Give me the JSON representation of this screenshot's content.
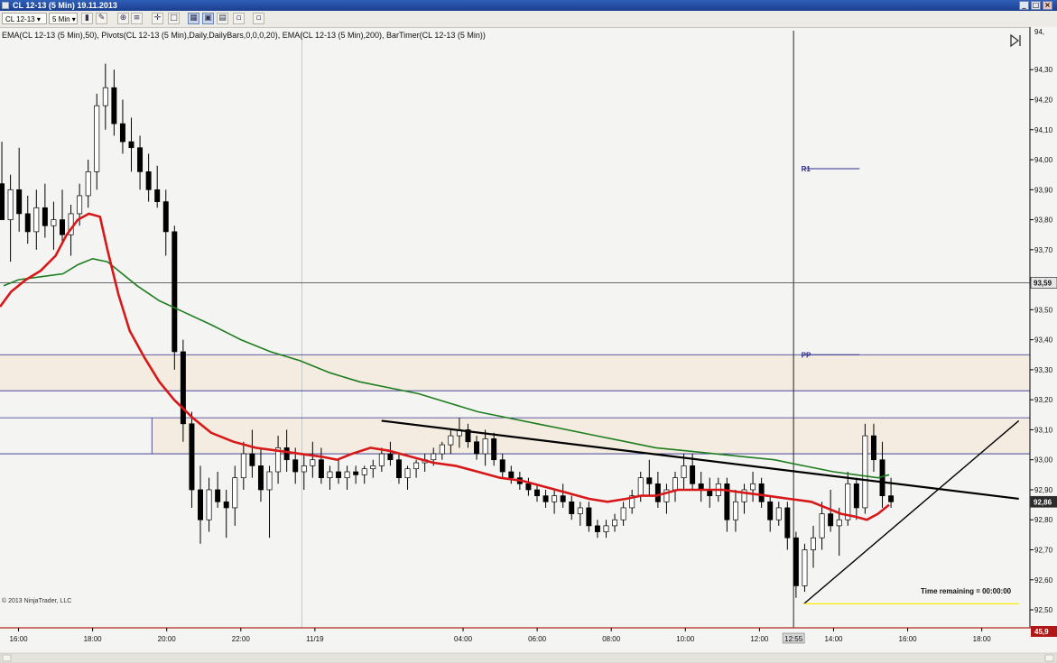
{
  "window": {
    "title": "CL 12-13 (5 Min)  19.11.2013",
    "buttons": [
      "_",
      "□",
      "×"
    ]
  },
  "toolbar": {
    "instrument": "CL 12-13",
    "interval": "5 Min",
    "icons": [
      "bar-type-icon",
      "pencil-icon",
      "zoom-icon",
      "crosshair-icon",
      "properties-icon",
      "data-box-icon",
      "grid-icon",
      "restore-icon",
      "window-icon"
    ]
  },
  "colors": {
    "ema50": "#d81818",
    "ema200": "#1e7d1e",
    "pivot": "#2c2c8a",
    "zone_fill": "#f4ece0",
    "background": "#f4f4f2",
    "candle_up": "#ffffff",
    "candle_down": "#000000",
    "price_marker": "#2b2b2b",
    "low_line": "#ffea00",
    "timer_box": "#b21717"
  },
  "chart_data": {
    "type": "candlestick",
    "indicator_label": "EMA(CL 12-13 (5 Min),50), Pivots(CL 12-13 (5 Min),Daily,DailyBars,0,0,0,20), EMA(CL 12-13 (5 Min),200), BarTimer(CL 12-13 (5 Min))",
    "ylim": [
      92.44,
      94.43
    ],
    "y_ticks": [
      94.3,
      94.2,
      94.1,
      94.0,
      93.9,
      93.8,
      93.7,
      93.6,
      93.5,
      93.4,
      93.3,
      93.2,
      93.1,
      93.0,
      92.9,
      92.8,
      92.7,
      92.6,
      92.5
    ],
    "y_tick_labels": [
      "94,30",
      "94,20",
      "94,10",
      "94,00",
      "93,90",
      "93,80",
      "93,70",
      "93,60",
      "93,50",
      "93,40",
      "93,30",
      "93,20",
      "93,10",
      "93,00",
      "92,90",
      "92,80",
      "92,70",
      "92,60",
      "92,50"
    ],
    "y_top_partial": "94,",
    "x_range_hours": [
      15.5,
      43.3
    ],
    "x_ticks": [
      {
        "t": 16,
        "label": "16:00"
      },
      {
        "t": 18,
        "label": "18:00"
      },
      {
        "t": 20,
        "label": "20:00"
      },
      {
        "t": 22,
        "label": "22:00"
      },
      {
        "t": 24,
        "label": "11/19"
      },
      {
        "t": 28,
        "label": "04:00"
      },
      {
        "t": 30,
        "label": "06:00"
      },
      {
        "t": 32,
        "label": "08:00"
      },
      {
        "t": 34,
        "label": "10:00"
      },
      {
        "t": 36,
        "label": "12:00"
      },
      {
        "t": 38,
        "label": "14:00"
      },
      {
        "t": 40,
        "label": "16:00"
      },
      {
        "t": 42,
        "label": "18:00"
      }
    ],
    "x_axis_marker": {
      "t": 36.92,
      "label": "12:55"
    },
    "session_divider_t": 23.65,
    "last_price": {
      "value": 92.86,
      "label": "92,86"
    },
    "other_price_marker": {
      "value": 93.59,
      "label": "93,59"
    },
    "horizontal_lines": [
      93.59,
      93.35,
      93.23,
      93.14,
      93.02
    ],
    "zones": [
      {
        "from": 93.23,
        "to": 93.35
      },
      {
        "from": 93.02,
        "to": 93.14
      }
    ],
    "zone2_start_t": 19.6,
    "pivots": [
      {
        "name": "R1",
        "value": 93.97,
        "t_from": 37.2,
        "t_to": 38.7
      },
      {
        "name": "PP",
        "value": 93.35,
        "t_from": 37.2,
        "t_to": 38.7
      }
    ],
    "low_line": {
      "value": 92.52,
      "t_from": 37.2,
      "t_to": 43.0
    },
    "trendlines": [
      {
        "t1": 25.8,
        "v1": 93.13,
        "t2": 43.0,
        "v2": 92.87
      },
      {
        "t1": 37.2,
        "v1": 92.52,
        "t2": 43.0,
        "v2": 93.13
      }
    ],
    "ema50_points": [
      [
        15.5,
        93.51
      ],
      [
        15.8,
        93.56
      ],
      [
        16.2,
        93.6
      ],
      [
        16.6,
        93.63
      ],
      [
        17.0,
        93.68
      ],
      [
        17.3,
        93.75
      ],
      [
        17.6,
        93.8
      ],
      [
        17.9,
        93.82
      ],
      [
        18.2,
        93.81
      ],
      [
        18.4,
        93.7
      ],
      [
        18.7,
        93.55
      ],
      [
        19.0,
        93.43
      ],
      [
        19.4,
        93.34
      ],
      [
        19.8,
        93.26
      ],
      [
        20.2,
        93.2
      ],
      [
        20.7,
        93.14
      ],
      [
        21.2,
        93.09
      ],
      [
        21.8,
        93.06
      ],
      [
        22.4,
        93.04
      ],
      [
        23.0,
        93.03
      ],
      [
        23.6,
        93.02
      ],
      [
        24.2,
        93.01
      ],
      [
        24.6,
        93.0
      ],
      [
        25.0,
        93.02
      ],
      [
        25.5,
        93.04
      ],
      [
        26.0,
        93.03
      ],
      [
        26.6,
        93.01
      ],
      [
        27.2,
        92.99
      ],
      [
        27.8,
        92.98
      ],
      [
        28.4,
        92.96
      ],
      [
        29.0,
        92.94
      ],
      [
        29.6,
        92.93
      ],
      [
        30.2,
        92.91
      ],
      [
        30.8,
        92.89
      ],
      [
        31.4,
        92.87
      ],
      [
        31.9,
        92.86
      ],
      [
        32.4,
        92.87
      ],
      [
        32.8,
        92.88
      ],
      [
        33.2,
        92.88
      ],
      [
        33.8,
        92.9
      ],
      [
        34.4,
        92.9
      ],
      [
        35.0,
        92.9
      ],
      [
        35.6,
        92.89
      ],
      [
        36.2,
        92.88
      ],
      [
        36.8,
        92.87
      ],
      [
        37.4,
        92.86
      ],
      [
        37.8,
        92.84
      ],
      [
        38.2,
        92.82
      ],
      [
        38.6,
        92.81
      ],
      [
        38.9,
        92.8
      ],
      [
        39.2,
        92.82
      ],
      [
        39.5,
        92.85
      ]
    ],
    "ema200_points": [
      [
        15.6,
        93.58
      ],
      [
        16.0,
        93.6
      ],
      [
        16.6,
        93.61
      ],
      [
        17.2,
        93.62
      ],
      [
        17.6,
        93.65
      ],
      [
        18.0,
        93.67
      ],
      [
        18.4,
        93.66
      ],
      [
        18.7,
        93.63
      ],
      [
        19.2,
        93.58
      ],
      [
        19.8,
        93.53
      ],
      [
        20.5,
        93.49
      ],
      [
        21.2,
        93.45
      ],
      [
        22.0,
        93.4
      ],
      [
        22.8,
        93.36
      ],
      [
        23.6,
        93.33
      ],
      [
        24.4,
        93.29
      ],
      [
        25.2,
        93.26
      ],
      [
        26.0,
        93.24
      ],
      [
        26.8,
        93.22
      ],
      [
        27.6,
        93.19
      ],
      [
        28.4,
        93.16
      ],
      [
        29.2,
        93.14
      ],
      [
        30.0,
        93.12
      ],
      [
        30.8,
        93.1
      ],
      [
        31.6,
        93.08
      ],
      [
        32.4,
        93.06
      ],
      [
        33.2,
        93.04
      ],
      [
        34.0,
        93.03
      ],
      [
        34.8,
        93.02
      ],
      [
        35.6,
        93.01
      ],
      [
        36.4,
        93.0
      ],
      [
        37.2,
        92.98
      ],
      [
        38.0,
        92.96
      ],
      [
        38.6,
        92.95
      ],
      [
        39.2,
        92.94
      ],
      [
        39.5,
        92.95
      ]
    ],
    "candles_ohlc": [
      [
        93.92,
        94.06,
        93.82,
        93.8
      ],
      [
        93.8,
        93.95,
        93.66,
        93.9
      ],
      [
        93.9,
        94.04,
        93.76,
        93.82
      ],
      [
        93.82,
        93.88,
        93.72,
        93.76
      ],
      [
        93.76,
        93.9,
        93.7,
        93.84
      ],
      [
        93.84,
        93.92,
        93.74,
        93.78
      ],
      [
        93.78,
        93.86,
        93.7,
        93.8
      ],
      [
        93.8,
        93.9,
        93.72,
        93.75
      ],
      [
        93.75,
        93.85,
        93.68,
        93.82
      ],
      [
        93.82,
        93.92,
        93.78,
        93.88
      ],
      [
        93.88,
        94.0,
        93.84,
        93.96
      ],
      [
        93.96,
        94.22,
        93.9,
        94.18
      ],
      [
        94.18,
        94.32,
        94.1,
        94.24
      ],
      [
        94.24,
        94.3,
        94.08,
        94.12
      ],
      [
        94.12,
        94.2,
        94.02,
        94.06
      ],
      [
        94.06,
        94.14,
        93.96,
        94.04
      ],
      [
        94.04,
        94.08,
        93.9,
        93.96
      ],
      [
        93.96,
        94.02,
        93.86,
        93.9
      ],
      [
        93.9,
        93.98,
        93.84,
        93.86
      ],
      [
        93.86,
        93.9,
        93.68,
        93.76
      ],
      [
        93.76,
        93.78,
        93.3,
        93.36
      ],
      [
        93.36,
        93.4,
        93.06,
        93.12
      ],
      [
        93.12,
        93.16,
        92.84,
        92.9
      ],
      [
        92.9,
        92.98,
        92.72,
        92.8
      ],
      [
        92.8,
        92.94,
        92.76,
        92.9
      ],
      [
        92.9,
        92.96,
        92.84,
        92.86
      ],
      [
        92.86,
        92.9,
        92.74,
        92.84
      ],
      [
        92.84,
        92.98,
        92.78,
        92.94
      ],
      [
        92.94,
        93.06,
        92.9,
        93.02
      ],
      [
        93.02,
        93.1,
        92.94,
        92.98
      ],
      [
        92.98,
        93.04,
        92.86,
        92.9
      ],
      [
        92.9,
        92.98,
        92.74,
        92.96
      ],
      [
        92.96,
        93.08,
        92.92,
        93.04
      ],
      [
        93.04,
        93.1,
        92.96,
        93.0
      ],
      [
        93.0,
        93.04,
        92.92,
        92.96
      ],
      [
        92.96,
        93.02,
        92.9,
        92.98
      ],
      [
        92.98,
        93.06,
        92.94,
        93.0
      ],
      [
        93.0,
        93.04,
        92.92,
        92.94
      ],
      [
        92.94,
        92.98,
        92.9,
        92.96
      ],
      [
        92.96,
        93.0,
        92.92,
        92.94
      ],
      [
        92.94,
        92.98,
        92.9,
        92.96
      ],
      [
        92.96,
        92.98,
        92.92,
        92.95
      ],
      [
        92.95,
        92.98,
        92.92,
        92.97
      ],
      [
        92.97,
        93.0,
        92.94,
        92.98
      ],
      [
        92.98,
        93.04,
        92.96,
        93.02
      ],
      [
        93.02,
        93.06,
        92.98,
        93.0
      ],
      [
        93.0,
        93.02,
        92.92,
        92.94
      ],
      [
        92.94,
        92.98,
        92.9,
        92.97
      ],
      [
        92.97,
        93.0,
        92.94,
        92.99
      ],
      [
        92.99,
        93.02,
        92.96,
        93.0
      ],
      [
        93.0,
        93.04,
        92.98,
        93.02
      ],
      [
        93.02,
        93.06,
        93.0,
        93.05
      ],
      [
        93.05,
        93.1,
        93.02,
        93.08
      ],
      [
        93.08,
        93.14,
        93.04,
        93.1
      ],
      [
        93.1,
        93.12,
        93.04,
        93.06
      ],
      [
        93.06,
        93.08,
        93.0,
        93.02
      ],
      [
        93.02,
        93.1,
        92.98,
        93.07
      ],
      [
        93.07,
        93.09,
        92.98,
        93.0
      ],
      [
        93.0,
        93.02,
        92.94,
        92.96
      ],
      [
        92.96,
        92.98,
        92.92,
        92.94
      ],
      [
        92.94,
        92.96,
        92.9,
        92.92
      ],
      [
        92.92,
        92.94,
        92.88,
        92.9
      ],
      [
        92.9,
        92.92,
        92.86,
        92.88
      ],
      [
        92.88,
        92.9,
        92.84,
        92.86
      ],
      [
        92.86,
        92.9,
        92.82,
        92.88
      ],
      [
        92.88,
        92.92,
        92.84,
        92.86
      ],
      [
        92.86,
        92.88,
        92.8,
        92.82
      ],
      [
        92.82,
        92.86,
        92.78,
        92.84
      ],
      [
        92.84,
        92.86,
        92.76,
        92.78
      ],
      [
        92.78,
        92.8,
        92.74,
        92.76
      ],
      [
        92.76,
        92.8,
        92.74,
        92.78
      ],
      [
        92.78,
        92.82,
        92.76,
        92.8
      ],
      [
        92.8,
        92.86,
        92.78,
        92.84
      ],
      [
        92.84,
        92.9,
        92.82,
        92.88
      ],
      [
        92.88,
        92.96,
        92.86,
        92.94
      ],
      [
        92.94,
        93.0,
        92.88,
        92.92
      ],
      [
        92.92,
        92.96,
        92.84,
        92.86
      ],
      [
        92.86,
        92.92,
        92.82,
        92.9
      ],
      [
        92.9,
        92.96,
        92.86,
        92.94
      ],
      [
        92.94,
        93.02,
        92.9,
        92.98
      ],
      [
        92.98,
        93.02,
        92.9,
        92.92
      ],
      [
        92.92,
        92.96,
        92.86,
        92.9
      ],
      [
        92.9,
        92.94,
        92.84,
        92.88
      ],
      [
        92.88,
        92.94,
        92.86,
        92.92
      ],
      [
        92.92,
        92.94,
        92.76,
        92.8
      ],
      [
        92.8,
        92.9,
        92.76,
        92.86
      ],
      [
        92.86,
        92.92,
        92.82,
        92.9
      ],
      [
        92.9,
        92.96,
        92.86,
        92.92
      ],
      [
        92.92,
        92.94,
        92.84,
        92.86
      ],
      [
        92.86,
        92.88,
        92.76,
        92.8
      ],
      [
        92.8,
        92.86,
        92.78,
        92.84
      ],
      [
        92.84,
        92.86,
        92.7,
        92.74
      ],
      [
        92.74,
        92.76,
        92.54,
        92.58
      ],
      [
        92.58,
        92.72,
        92.56,
        92.7
      ],
      [
        92.7,
        92.78,
        92.64,
        92.74
      ],
      [
        92.74,
        92.86,
        92.7,
        92.82
      ],
      [
        92.82,
        92.9,
        92.76,
        92.78
      ],
      [
        92.78,
        92.84,
        92.68,
        92.8
      ],
      [
        92.8,
        92.96,
        92.78,
        92.92
      ],
      [
        92.92,
        92.94,
        92.8,
        92.84
      ],
      [
        92.84,
        93.12,
        92.82,
        93.08
      ],
      [
        93.08,
        93.12,
        92.96,
        93.0
      ],
      [
        93.0,
        93.06,
        92.84,
        92.88
      ],
      [
        92.88,
        92.94,
        92.84,
        92.86
      ]
    ],
    "candles_t_range": [
      15.55,
      39.55
    ],
    "copyright": "© 2013 NinjaTrader, LLC",
    "time_remaining_label": "Time remaining = 00:00:00",
    "timer_value_label": "45,9"
  }
}
